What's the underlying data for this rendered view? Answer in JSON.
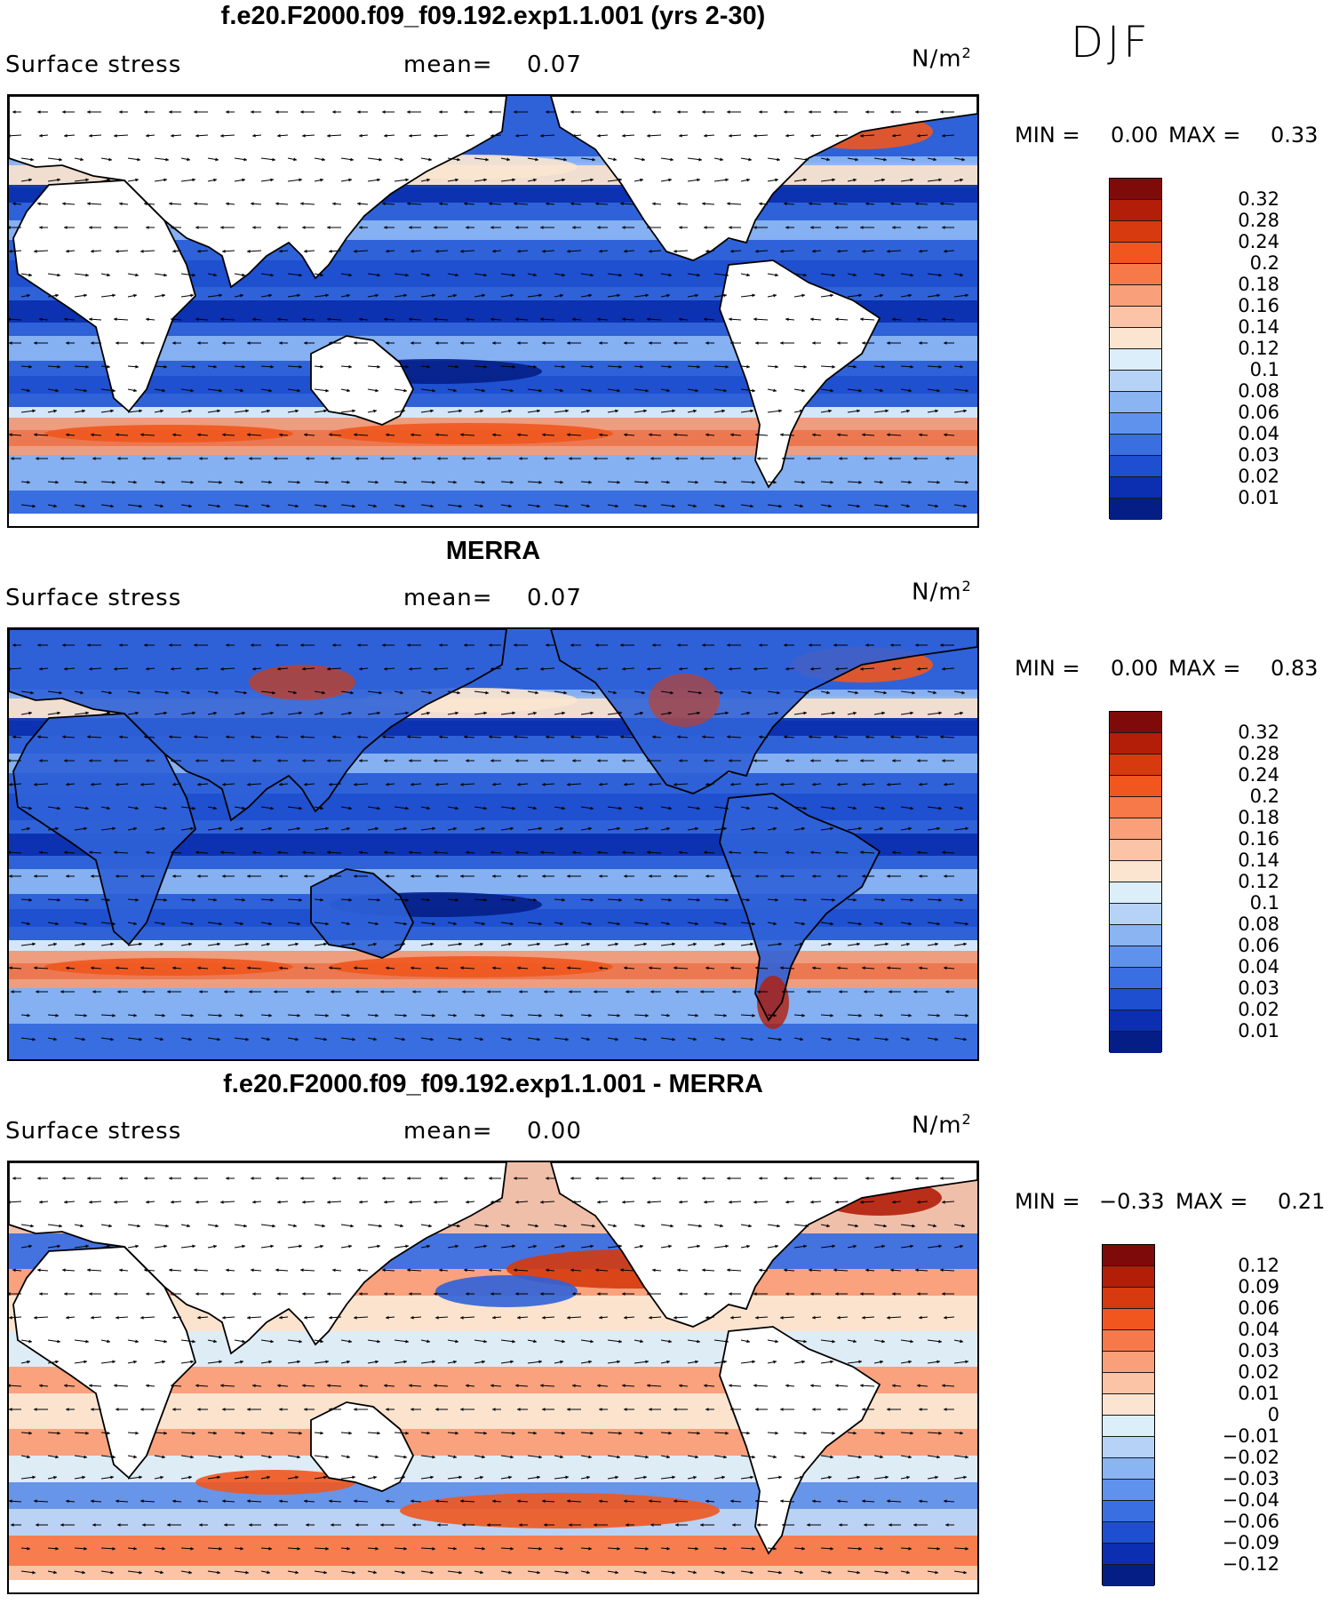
{
  "season": "DJF",
  "panels": [
    {
      "title": "f.e20.F2000.f09_f09.192.exp1.1.001 (yrs 2-30)",
      "variable": "Surface stress",
      "mean_label": "mean=",
      "mean_value": "0.07",
      "units": "N/m",
      "units_sup": "2",
      "min_label": "MIN =",
      "min_value": "0.00",
      "max_label": "MAX =",
      "max_value": "0.33",
      "colorbar": {
        "labels": [
          "0.32",
          "0.28",
          "0.24",
          "0.2",
          "0.18",
          "0.16",
          "0.14",
          "0.12",
          "0.1",
          "0.08",
          "0.06",
          "0.04",
          "0.03",
          "0.02",
          "0.01"
        ],
        "colors": [
          "#7f0a0a",
          "#b31e08",
          "#d63a0e",
          "#f0561e",
          "#f7794a",
          "#f9a07a",
          "#fbc4a6",
          "#fbe5d0",
          "#dceefa",
          "#b6d3f7",
          "#8ab4f2",
          "#5f92ec",
          "#3a6fe2",
          "#1d4fd0",
          "#0b2fb0",
          "#041e86"
        ]
      },
      "map": {
        "base": "#2f62d8",
        "kind": "model"
      }
    },
    {
      "title": "MERRA",
      "variable": "Surface stress",
      "mean_label": "mean=",
      "mean_value": "0.07",
      "units": "N/m",
      "units_sup": "2",
      "min_label": "MIN =",
      "min_value": "0.00",
      "max_label": "MAX =",
      "max_value": "0.83",
      "colorbar": {
        "labels": [
          "0.32",
          "0.28",
          "0.24",
          "0.2",
          "0.18",
          "0.16",
          "0.14",
          "0.12",
          "0.1",
          "0.08",
          "0.06",
          "0.04",
          "0.03",
          "0.02",
          "0.01"
        ],
        "colors": [
          "#7f0a0a",
          "#b31e08",
          "#d63a0e",
          "#f0561e",
          "#f7794a",
          "#f9a07a",
          "#fbc4a6",
          "#fbe5d0",
          "#dceefa",
          "#b6d3f7",
          "#8ab4f2",
          "#5f92ec",
          "#3a6fe2",
          "#1d4fd0",
          "#0b2fb0",
          "#041e86"
        ]
      },
      "map": {
        "base": "#2f62d8",
        "kind": "obs"
      }
    },
    {
      "title": "f.e20.F2000.f09_f09.192.exp1.1.001 - MERRA",
      "variable": "Surface stress",
      "mean_label": "mean=",
      "mean_value": "0.00",
      "units": "N/m",
      "units_sup": "2",
      "min_label": "MIN =",
      "min_value": "−0.33",
      "max_label": "MAX =",
      "max_value": "0.21",
      "colorbar": {
        "labels": [
          "0.12",
          "0.09",
          "0.06",
          "0.04",
          "0.03",
          "0.02",
          "0.01",
          "0",
          "−0.01",
          "−0.02",
          "−0.03",
          "−0.04",
          "−0.06",
          "−0.09",
          "−0.12"
        ],
        "colors": [
          "#7f0a0a",
          "#b31e08",
          "#d63a0e",
          "#f0561e",
          "#f7794a",
          "#f9a07a",
          "#fbc4a6",
          "#fbe5d0",
          "#dceefa",
          "#b6d3f7",
          "#8ab4f2",
          "#5f92ec",
          "#3a6fe2",
          "#1d4fd0",
          "#0b2fb0",
          "#041e86"
        ]
      },
      "map": {
        "base": "#fbe5d0",
        "kind": "diff"
      }
    }
  ]
}
